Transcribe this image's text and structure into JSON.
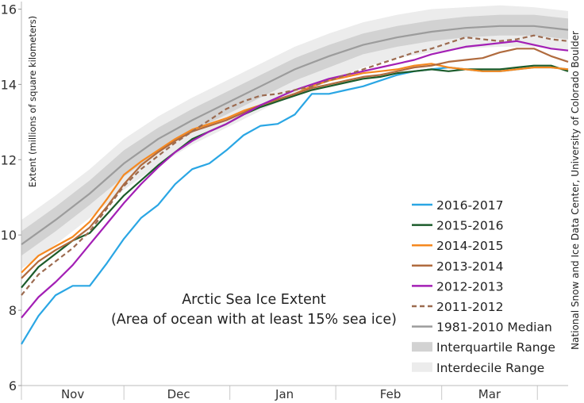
{
  "chart_data": {
    "type": "line",
    "title": "Arctic Sea Ice Extent",
    "subtitle": "(Area of ocean with at least 15% sea ice)",
    "ylabel": "Extent (millions of square kilometers)",
    "credit": "National Snow and Ice Data Center, University of Colorado Boulder",
    "xlim": [
      0,
      160
    ],
    "ylim": [
      6,
      16.2
    ],
    "y_ticks": [
      6,
      8,
      10,
      12,
      14,
      16
    ],
    "x_tick_labels": [
      {
        "label": "Nov",
        "x": 15
      },
      {
        "label": "Dec",
        "x": 46
      },
      {
        "label": "Jan",
        "x": 77
      },
      {
        "label": "Feb",
        "x": 108
      },
      {
        "label": "Mar",
        "x": 137
      }
    ],
    "month_separators": [
      0,
      30,
      61,
      92,
      123,
      151
    ],
    "median": {
      "name": "1981-2010 Median",
      "color": "#9c9c9c",
      "x": [
        0,
        10,
        20,
        30,
        40,
        50,
        60,
        70,
        80,
        90,
        100,
        110,
        120,
        130,
        140,
        150,
        160
      ],
      "values": [
        9.75,
        10.4,
        11.1,
        11.9,
        12.55,
        13.05,
        13.5,
        13.95,
        14.4,
        14.75,
        15.05,
        15.25,
        15.4,
        15.5,
        15.55,
        15.55,
        15.45
      ]
    },
    "interquartile": {
      "name": "Interquartile Range",
      "color": "#d2d2d2",
      "x": [
        0,
        10,
        20,
        30,
        40,
        50,
        60,
        70,
        80,
        90,
        100,
        110,
        120,
        130,
        140,
        150,
        160
      ],
      "low": [
        9.45,
        10.1,
        10.8,
        11.55,
        12.2,
        12.75,
        13.2,
        13.65,
        14.1,
        14.45,
        14.8,
        15.0,
        15.15,
        15.25,
        15.3,
        15.3,
        15.2
      ],
      "high": [
        10.1,
        10.75,
        11.45,
        12.25,
        12.85,
        13.35,
        13.8,
        14.25,
        14.7,
        15.05,
        15.35,
        15.55,
        15.7,
        15.8,
        15.85,
        15.85,
        15.75
      ]
    },
    "interdecile": {
      "name": "Interdecile Range",
      "color": "#ececec",
      "x": [
        0,
        10,
        20,
        30,
        40,
        50,
        60,
        70,
        80,
        90,
        100,
        110,
        120,
        130,
        140,
        150,
        160
      ],
      "low": [
        9.1,
        9.75,
        10.45,
        11.2,
        11.85,
        12.4,
        12.85,
        13.3,
        13.75,
        14.1,
        14.45,
        14.7,
        14.85,
        14.95,
        15.0,
        15.0,
        14.9
      ],
      "high": [
        10.4,
        11.05,
        11.75,
        12.55,
        13.15,
        13.65,
        14.1,
        14.55,
        15.0,
        15.35,
        15.65,
        15.85,
        16.0,
        16.05,
        16.1,
        16.05,
        15.95
      ]
    },
    "series": [
      {
        "name": "2016-2017",
        "color": "#2aa6e4",
        "dashed": false,
        "x": [
          0,
          5,
          10,
          15,
          20,
          25,
          30,
          35,
          40,
          45,
          50,
          55,
          60,
          65,
          70,
          75,
          80,
          85,
          90,
          95,
          100,
          105,
          110,
          115,
          120,
          125,
          130,
          135,
          140,
          145,
          150,
          155,
          160
        ],
        "values": [
          7.1,
          7.85,
          8.4,
          8.65,
          8.65,
          9.25,
          9.9,
          10.45,
          10.8,
          11.35,
          11.75,
          11.9,
          12.25,
          12.65,
          12.9,
          12.95,
          13.2,
          13.75,
          13.75,
          13.85,
          13.95,
          14.1,
          14.25,
          14.35,
          14.4,
          14.45,
          14.4,
          14.35,
          14.35,
          14.4,
          14.45,
          14.45,
          14.4
        ]
      },
      {
        "name": "2015-2016",
        "color": "#1c5c2b",
        "dashed": false,
        "x": [
          0,
          5,
          10,
          15,
          20,
          25,
          30,
          35,
          40,
          45,
          50,
          55,
          60,
          65,
          70,
          75,
          80,
          85,
          90,
          95,
          100,
          105,
          110,
          115,
          120,
          125,
          130,
          135,
          140,
          145,
          150,
          155,
          160
        ],
        "values": [
          8.6,
          9.15,
          9.5,
          9.85,
          10.05,
          10.55,
          11.05,
          11.45,
          11.85,
          12.2,
          12.55,
          12.75,
          12.95,
          13.2,
          13.4,
          13.55,
          13.7,
          13.85,
          13.95,
          14.05,
          14.15,
          14.2,
          14.3,
          14.35,
          14.4,
          14.35,
          14.4,
          14.4,
          14.4,
          14.45,
          14.5,
          14.5,
          14.35
        ]
      },
      {
        "name": "2014-2015",
        "color": "#f5881f",
        "dashed": false,
        "x": [
          0,
          5,
          10,
          15,
          20,
          25,
          30,
          35,
          40,
          45,
          50,
          55,
          60,
          65,
          70,
          75,
          80,
          85,
          90,
          95,
          100,
          105,
          110,
          115,
          120,
          125,
          130,
          135,
          140,
          145,
          150,
          155,
          160
        ],
        "values": [
          9.0,
          9.45,
          9.7,
          9.95,
          10.35,
          10.95,
          11.6,
          11.95,
          12.25,
          12.55,
          12.8,
          12.95,
          13.1,
          13.3,
          13.45,
          13.6,
          13.75,
          13.95,
          14.1,
          14.2,
          14.3,
          14.35,
          14.4,
          14.5,
          14.55,
          14.45,
          14.4,
          14.35,
          14.35,
          14.4,
          14.45,
          14.45,
          14.4
        ]
      },
      {
        "name": "2013-2014",
        "color": "#b06b3e",
        "dashed": false,
        "x": [
          0,
          5,
          10,
          15,
          20,
          25,
          30,
          35,
          40,
          45,
          50,
          55,
          60,
          65,
          70,
          75,
          80,
          85,
          90,
          95,
          100,
          105,
          110,
          115,
          120,
          125,
          130,
          135,
          140,
          145,
          150,
          155,
          160
        ],
        "values": [
          8.85,
          9.3,
          9.6,
          9.85,
          10.2,
          10.75,
          11.35,
          11.85,
          12.2,
          12.5,
          12.75,
          12.9,
          13.05,
          13.25,
          13.45,
          13.6,
          13.75,
          13.9,
          14.0,
          14.1,
          14.2,
          14.25,
          14.35,
          14.45,
          14.5,
          14.6,
          14.65,
          14.7,
          14.85,
          14.95,
          14.95,
          14.75,
          14.6
        ]
      },
      {
        "name": "2012-2013",
        "color": "#a31fb5",
        "dashed": false,
        "x": [
          0,
          5,
          10,
          15,
          20,
          25,
          30,
          35,
          40,
          45,
          50,
          55,
          60,
          65,
          70,
          75,
          80,
          85,
          90,
          95,
          100,
          105,
          110,
          115,
          120,
          125,
          130,
          135,
          140,
          145,
          150,
          155,
          160
        ],
        "values": [
          7.8,
          8.35,
          8.75,
          9.2,
          9.75,
          10.3,
          10.85,
          11.35,
          11.8,
          12.2,
          12.5,
          12.75,
          12.95,
          13.2,
          13.45,
          13.65,
          13.85,
          14.0,
          14.15,
          14.25,
          14.35,
          14.45,
          14.55,
          14.65,
          14.8,
          14.9,
          15.0,
          15.05,
          15.1,
          15.15,
          15.05,
          14.95,
          14.9
        ]
      },
      {
        "name": "2011-2012",
        "color": "#9c6b50",
        "dashed": true,
        "x": [
          0,
          5,
          10,
          15,
          20,
          25,
          30,
          35,
          40,
          45,
          50,
          55,
          60,
          65,
          70,
          75,
          80,
          85,
          90,
          95,
          100,
          105,
          110,
          115,
          120,
          125,
          130,
          135,
          140,
          145,
          150,
          155,
          160
        ],
        "values": [
          8.4,
          8.95,
          9.3,
          9.65,
          10.1,
          10.7,
          11.3,
          11.75,
          12.1,
          12.45,
          12.75,
          13.05,
          13.35,
          13.55,
          13.7,
          13.75,
          13.85,
          13.95,
          14.1,
          14.25,
          14.4,
          14.55,
          14.7,
          14.85,
          14.95,
          15.1,
          15.25,
          15.2,
          15.15,
          15.2,
          15.3,
          15.2,
          15.15
        ]
      }
    ],
    "legend": {
      "position": "bottom-right",
      "entries": [
        {
          "label": "2016-2017",
          "kind": "line",
          "color": "#2aa6e4"
        },
        {
          "label": "2015-2016",
          "kind": "line",
          "color": "#1c5c2b"
        },
        {
          "label": "2014-2015",
          "kind": "line",
          "color": "#f5881f"
        },
        {
          "label": "2013-2014",
          "kind": "line",
          "color": "#b06b3e"
        },
        {
          "label": "2012-2013",
          "kind": "line",
          "color": "#a31fb5"
        },
        {
          "label": "2011-2012",
          "kind": "dashed",
          "color": "#9c6b50"
        },
        {
          "label": "1981-2010 Median",
          "kind": "line",
          "color": "#9c9c9c"
        },
        {
          "label": "Interquartile Range",
          "kind": "band",
          "color": "#d2d2d2"
        },
        {
          "label": "Interdecile Range",
          "kind": "band",
          "color": "#ececec"
        }
      ]
    }
  }
}
